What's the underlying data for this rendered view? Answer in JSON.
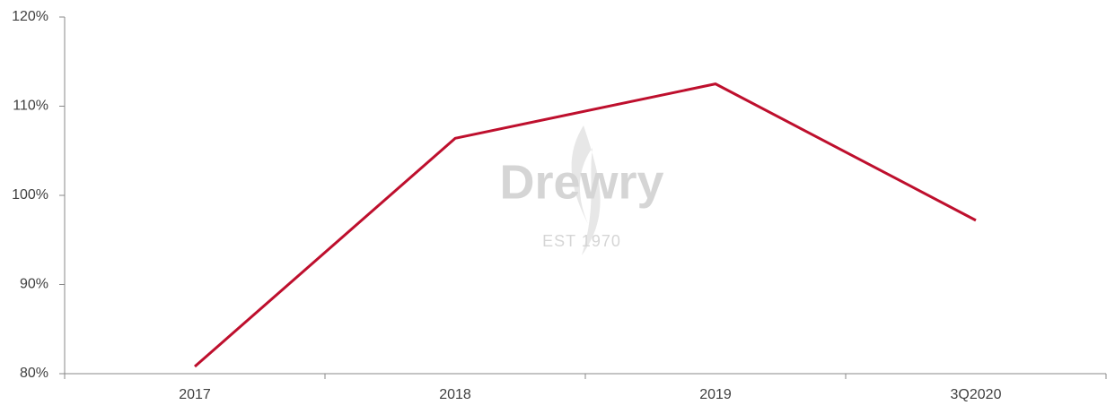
{
  "chart_data": {
    "type": "line",
    "categories": [
      "2017",
      "2018",
      "2019",
      "3Q2020"
    ],
    "series": [
      {
        "values": [
          80.8,
          106.4,
          112.5,
          97.2
        ],
        "color": "#be0f2d"
      }
    ],
    "ylim": [
      80,
      120
    ],
    "yticks": [
      {
        "value": 80,
        "label": "80%"
      },
      {
        "value": 90,
        "label": "90%"
      },
      {
        "value": 100,
        "label": "100%"
      },
      {
        "value": 110,
        "label": "110%"
      },
      {
        "value": 120,
        "label": "120%"
      }
    ],
    "grid": false,
    "watermark": {
      "name": "Drewry",
      "est": "EST 1970"
    }
  }
}
